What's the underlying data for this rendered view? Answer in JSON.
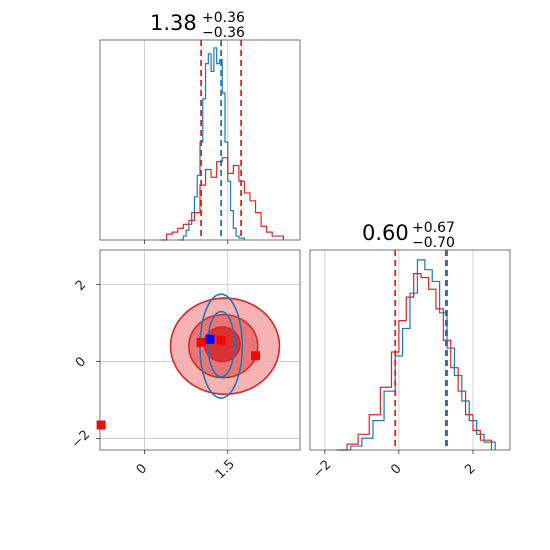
{
  "colors": {
    "red": "#d62728",
    "blue": "#1f77b4",
    "grid": "#c8c8c8",
    "marker_red": "#ff0000",
    "marker_blue": "#0000ff"
  },
  "chart_data": [
    {
      "type": "histogram",
      "panel": "top-left",
      "title": {
        "median": "1.38",
        "plus": "+0.36",
        "minus": "−0.36"
      },
      "xlim": [
        -0.8,
        2.8
      ],
      "x_ticks": [
        0.0,
        1.5
      ],
      "lines": {
        "red_quantiles": [
          1.02,
          1.74
        ],
        "blue_median": 1.38
      },
      "series": [
        {
          "color": "blue",
          "x": [
            0.6,
            0.7,
            0.75,
            0.8,
            0.85,
            0.9,
            0.95,
            1.0,
            1.05,
            1.1,
            1.15,
            1.2,
            1.25,
            1.3,
            1.35,
            1.4,
            1.45,
            1.5,
            1.55,
            1.6,
            1.65,
            1.7,
            1.8
          ],
          "values": [
            0.0,
            0.02,
            0.05,
            0.08,
            0.14,
            0.22,
            0.33,
            0.5,
            0.72,
            0.9,
            0.95,
            0.86,
            0.98,
            0.9,
            0.92,
            0.75,
            0.5,
            0.3,
            0.15,
            0.06,
            0.02,
            0.01,
            0.0
          ]
        },
        {
          "color": "red",
          "x": [
            0.3,
            0.4,
            0.5,
            0.6,
            0.7,
            0.8,
            0.9,
            1.0,
            1.1,
            1.2,
            1.3,
            1.4,
            1.5,
            1.6,
            1.7,
            1.8,
            1.9,
            2.0,
            2.1,
            2.2,
            2.3,
            2.5
          ],
          "values": [
            0.0,
            0.03,
            0.04,
            0.06,
            0.08,
            0.1,
            0.14,
            0.28,
            0.36,
            0.32,
            0.4,
            0.42,
            0.34,
            0.38,
            0.3,
            0.24,
            0.2,
            0.14,
            0.07,
            0.04,
            0.02,
            0.0
          ]
        }
      ]
    },
    {
      "type": "histogram",
      "panel": "bottom-right",
      "title": {
        "median": "0.60",
        "plus": "+0.67",
        "minus": "−0.70"
      },
      "xlim": [
        -2.4,
        3.0
      ],
      "x_ticks": [
        -2,
        0,
        2
      ],
      "lines": {
        "red_quantiles": [
          -0.1,
          1.27
        ],
        "blue_quantiles": [
          1.3
        ]
      },
      "series": [
        {
          "color": "blue",
          "x": [
            -1.6,
            -1.3,
            -1.0,
            -0.7,
            -0.4,
            -0.1,
            0.1,
            0.3,
            0.5,
            0.7,
            0.9,
            1.1,
            1.3,
            1.5,
            1.7,
            1.9,
            2.1,
            2.3,
            2.6
          ],
          "values": [
            0.0,
            0.02,
            0.06,
            0.15,
            0.3,
            0.48,
            0.62,
            0.8,
            0.97,
            0.92,
            0.86,
            0.7,
            0.52,
            0.38,
            0.25,
            0.15,
            0.08,
            0.04,
            0.0
          ]
        },
        {
          "color": "red",
          "x": [
            -1.7,
            -1.4,
            -1.1,
            -0.8,
            -0.5,
            -0.2,
            0.0,
            0.2,
            0.4,
            0.6,
            0.8,
            1.0,
            1.2,
            1.4,
            1.6,
            1.8,
            2.0,
            2.2,
            2.5
          ],
          "values": [
            0.0,
            0.03,
            0.08,
            0.18,
            0.32,
            0.5,
            0.66,
            0.78,
            0.9,
            0.88,
            0.82,
            0.72,
            0.56,
            0.42,
            0.3,
            0.18,
            0.1,
            0.05,
            0.0
          ]
        }
      ]
    },
    {
      "type": "contour",
      "panel": "bottom-left",
      "xlim": [
        -0.8,
        2.8
      ],
      "ylim": [
        -2.3,
        2.9
      ],
      "x_ticks": [
        0.0,
        1.5
      ],
      "y_ticks": [
        -2,
        0,
        2
      ],
      "red_levels": [
        {
          "cx": 1.45,
          "cy": 0.4,
          "rx": 0.98,
          "ry": 1.25
        },
        {
          "cx": 1.42,
          "cy": 0.4,
          "rx": 0.62,
          "ry": 0.82
        },
        {
          "cx": 1.4,
          "cy": 0.45,
          "rx": 0.32,
          "ry": 0.45
        }
      ],
      "blue_levels": [
        {
          "cx": 1.38,
          "cy": 0.4,
          "rx": 0.38,
          "ry": 1.35
        },
        {
          "cx": 1.38,
          "cy": 0.45,
          "rx": 0.24,
          "ry": 0.85
        }
      ],
      "markers": [
        {
          "color": "red",
          "x": -0.78,
          "y": -1.65
        },
        {
          "color": "red",
          "x": 1.02,
          "y": 0.5
        },
        {
          "color": "red",
          "x": 1.38,
          "y": 0.55
        },
        {
          "color": "red",
          "x": 2.0,
          "y": 0.15
        },
        {
          "color": "blue",
          "x": 1.18,
          "y": 0.58
        }
      ]
    }
  ]
}
